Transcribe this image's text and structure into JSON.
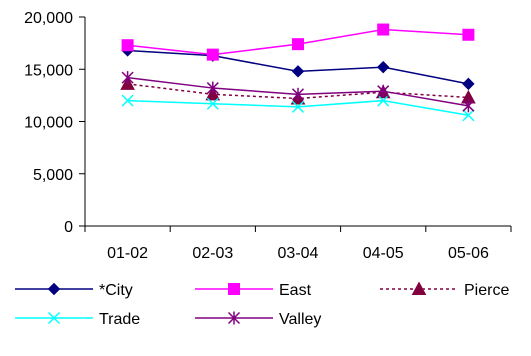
{
  "chart_data": {
    "type": "line",
    "categories": [
      "01-02",
      "02-03",
      "03-04",
      "04-05",
      "05-06"
    ],
    "ylim": [
      0,
      20000
    ],
    "yticks": [
      0,
      5000,
      10000,
      15000,
      20000
    ],
    "ytick_labels": [
      "0",
      "5,000",
      "10,000",
      "15,000",
      "20,000"
    ],
    "grid": false,
    "legend_position": "bottom",
    "series": [
      {
        "name": "*City",
        "values": [
          16800,
          16300,
          14800,
          15200,
          13600
        ],
        "color": "#000080",
        "marker": "diamond",
        "dash": false
      },
      {
        "name": "East",
        "values": [
          17300,
          16400,
          17400,
          18800,
          18300
        ],
        "color": "#ff00ff",
        "marker": "square",
        "dash": false
      },
      {
        "name": "Pierce",
        "values": [
          13600,
          12600,
          12200,
          12800,
          12300
        ],
        "color": "#800040",
        "marker": "triangle",
        "dash": true
      },
      {
        "name": "Trade",
        "values": [
          12000,
          11700,
          11400,
          12000,
          10600
        ],
        "color": "#00ffff",
        "marker": "x",
        "dash": false
      },
      {
        "name": "Valley",
        "values": [
          14200,
          13200,
          12600,
          12900,
          11500
        ],
        "color": "#800080",
        "marker": "star",
        "dash": false
      }
    ]
  }
}
